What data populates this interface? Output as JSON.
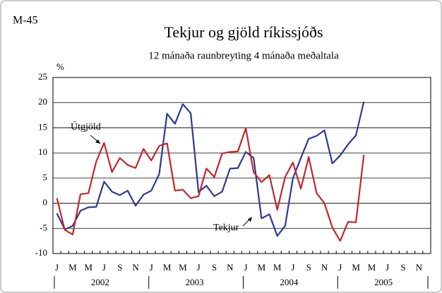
{
  "chart_data": {
    "type": "line",
    "label": "M-45",
    "title": "Tekjur og gjöld ríkissjóðs",
    "subtitle": "12 mánaða raunbreyting 4 mánaða meðaltala",
    "y_unit": "%",
    "categories": [
      "J",
      null,
      "M",
      null,
      "M",
      null,
      "J",
      null,
      "S",
      null,
      "N",
      null,
      "J",
      null,
      "M",
      null,
      "M",
      null,
      "J",
      null,
      "S",
      null,
      "N",
      null,
      "J",
      null,
      "M",
      null,
      "M",
      null,
      "J",
      null,
      "S",
      null,
      "N",
      null,
      "J",
      null,
      "M",
      null,
      "M",
      null,
      "J",
      null,
      "S",
      null,
      "N",
      null
    ],
    "year_labels": [
      "2002",
      "2003",
      "2004",
      "2005"
    ],
    "series": [
      {
        "name": "Tekjur",
        "color": "#2b3a8f",
        "values": [
          -2.0,
          -5.2,
          -4.5,
          -1.5,
          -0.8,
          -0.7,
          4.3,
          2.3,
          1.6,
          2.5,
          -0.5,
          1.7,
          2.5,
          5.8,
          17.8,
          15.8,
          19.7,
          17.9,
          2.2,
          3.5,
          1.4,
          2.3,
          6.9,
          7.0,
          10.2,
          9.0,
          -3.0,
          -2.2,
          -6.5,
          -4.5,
          5.0,
          9.0,
          12.8,
          13.4,
          14.5,
          7.9,
          9.5,
          11.7,
          13.5,
          20.2,
          null,
          null,
          null,
          null,
          null,
          null,
          null,
          null
        ]
      },
      {
        "name": "Útgjöld",
        "color": "#c0282d",
        "values": [
          1.0,
          -5.3,
          -6.2,
          1.8,
          2.0,
          8.3,
          12.0,
          6.2,
          9.0,
          7.6,
          7.0,
          10.8,
          8.5,
          11.4,
          11.9,
          2.5,
          2.7,
          1.0,
          1.4,
          6.9,
          5.2,
          9.9,
          10.2,
          10.3,
          14.9,
          6.2,
          4.2,
          5.6,
          -1.3,
          5.2,
          8.1,
          2.9,
          9.2,
          2.0,
          0.0,
          -4.8,
          -7.5,
          -3.7,
          -3.8,
          9.6,
          null,
          null,
          null,
          null,
          null,
          null,
          null,
          null
        ]
      }
    ],
    "ylim": [
      -10,
      25
    ],
    "yticks": [
      -10,
      -5,
      0,
      5,
      10,
      15,
      20,
      25
    ],
    "grid": true
  }
}
